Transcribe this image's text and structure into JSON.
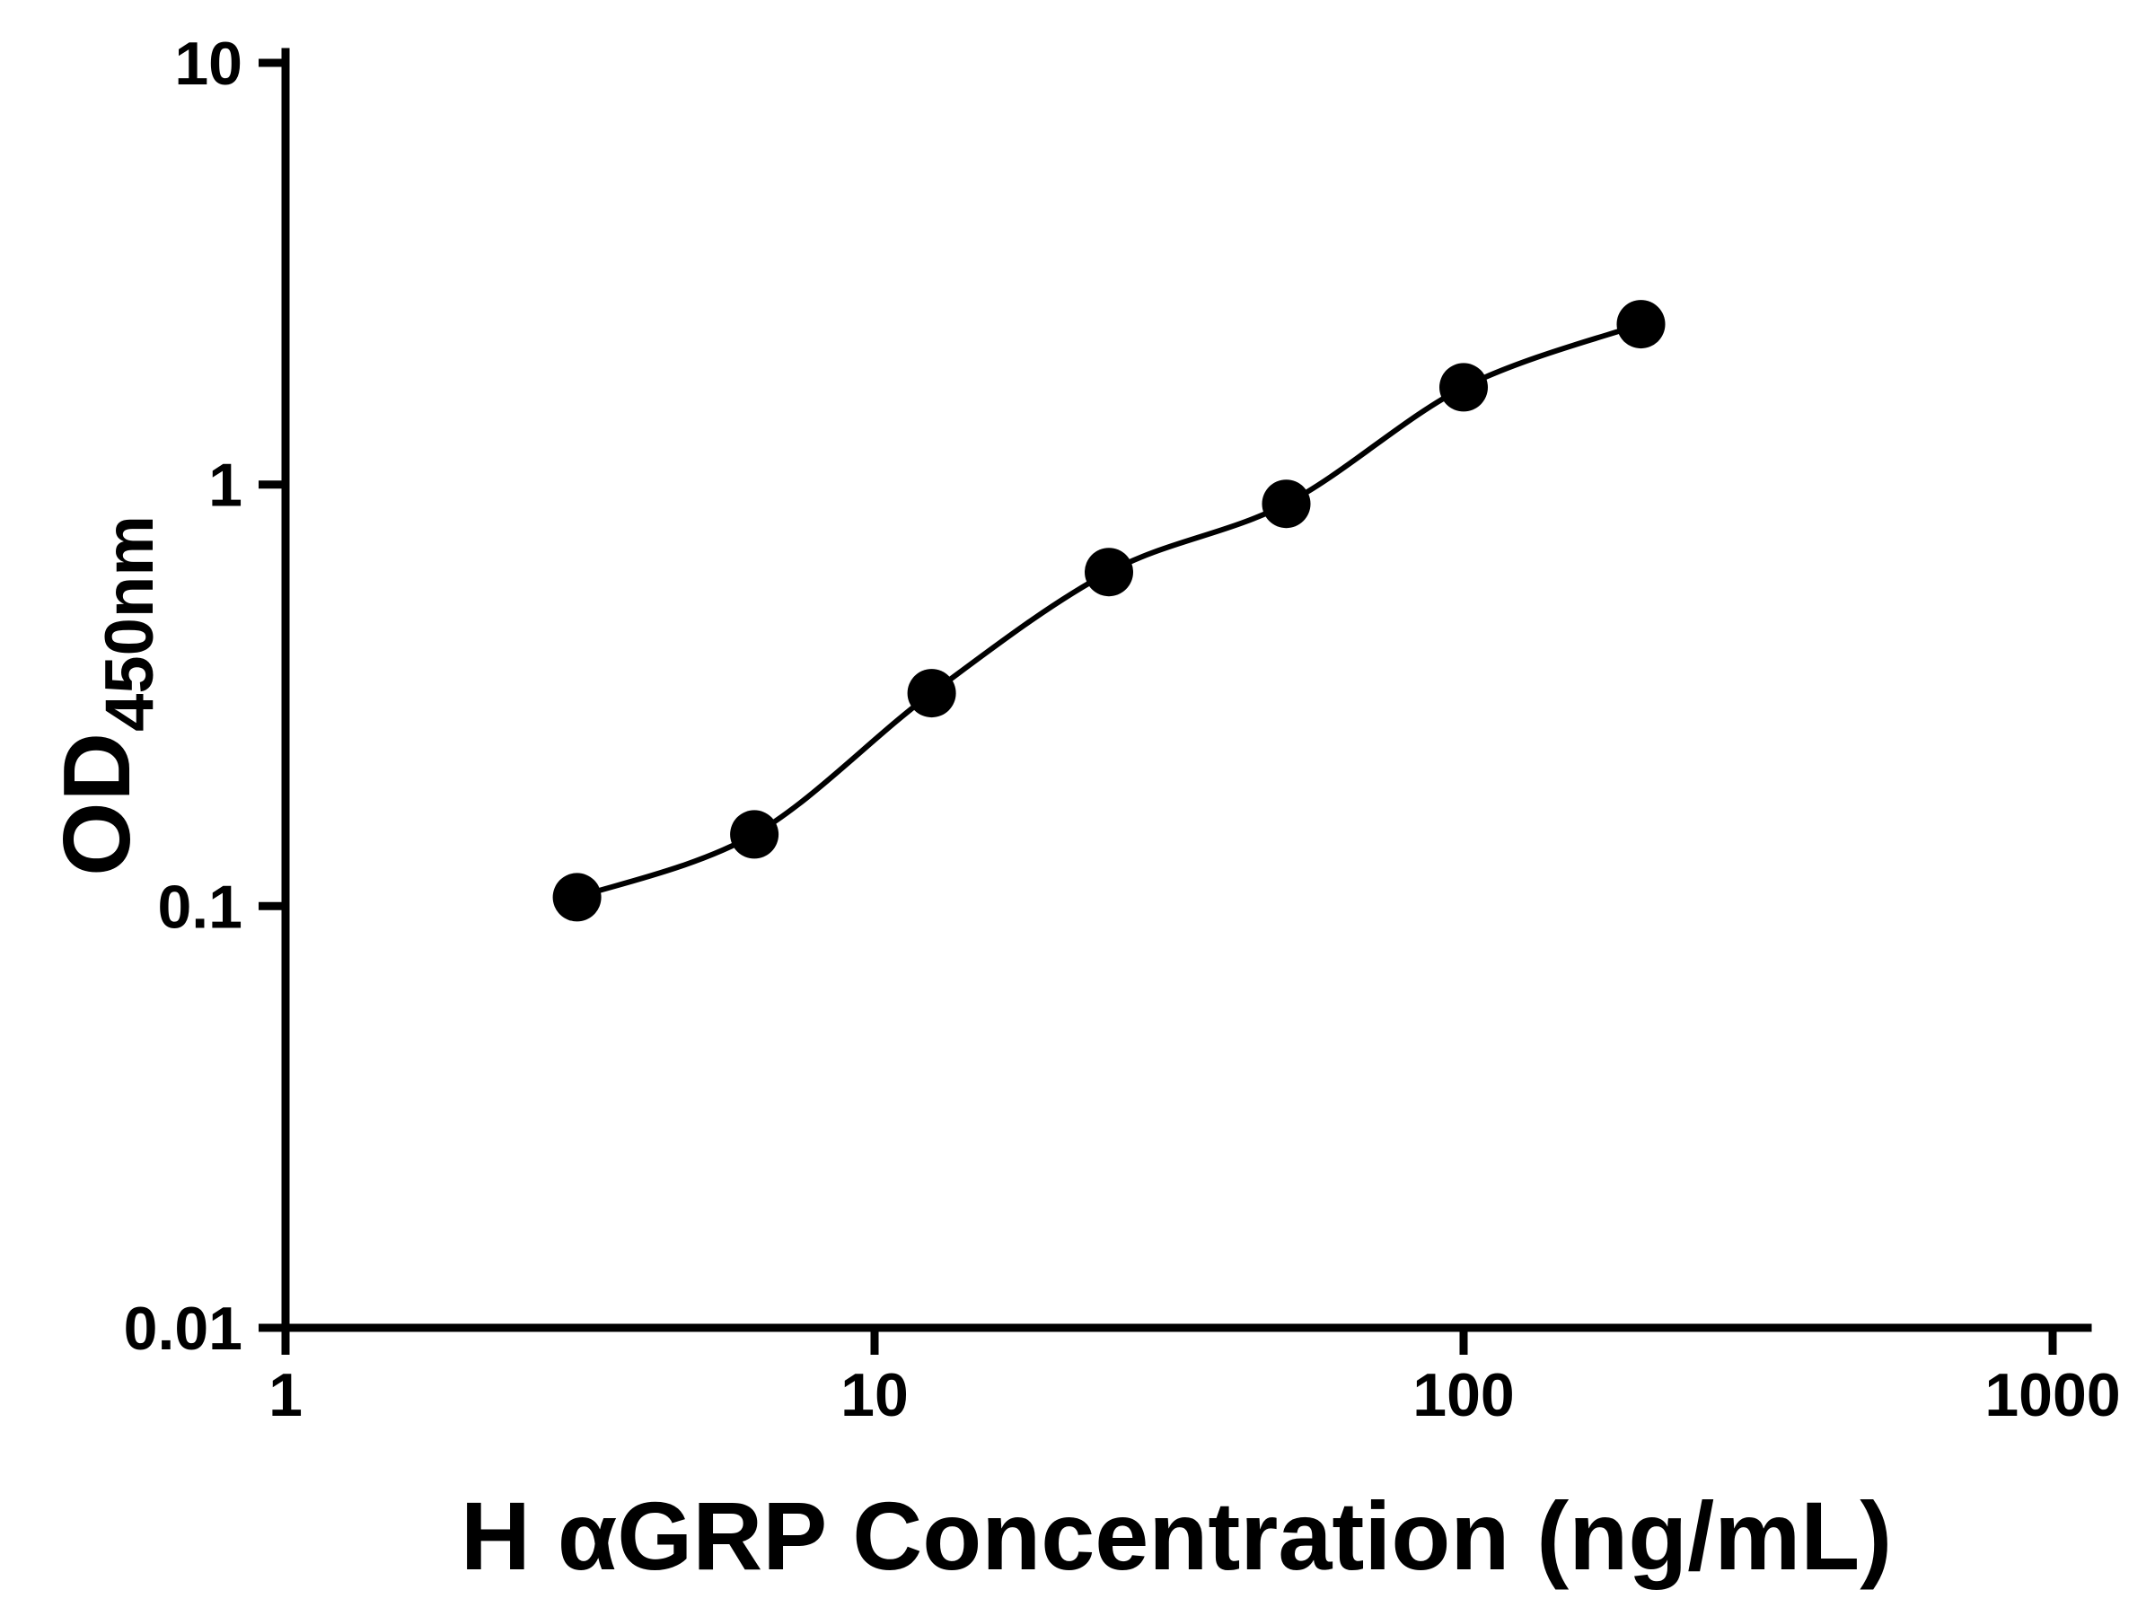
{
  "chart_data": {
    "type": "scatter",
    "title": "",
    "xlabel": "H αGRP Concentration (ng/mL)",
    "ylabel_main": "OD",
    "ylabel_sub": "450nm",
    "x_scale": "log",
    "y_scale": "log",
    "xlim": [
      1,
      1000
    ],
    "ylim": [
      0.01,
      10
    ],
    "x_ticks": [
      1,
      10,
      100,
      1000
    ],
    "x_tick_labels": [
      "1",
      "10",
      "100",
      "1000"
    ],
    "y_ticks": [
      0.01,
      0.1,
      1,
      10
    ],
    "y_tick_labels": [
      "0.01",
      "0.1",
      "1",
      "10"
    ],
    "x": [
      3.125,
      6.25,
      12.5,
      25,
      50,
      100,
      200
    ],
    "y": [
      0.105,
      0.148,
      0.32,
      0.62,
      0.9,
      1.7,
      2.4
    ],
    "marker": "filled-circle",
    "curve": "smooth-fit",
    "grid": false,
    "legend": false,
    "colors": {
      "axis": "#000000",
      "marker": "#000000",
      "line": "#000000",
      "background": "#ffffff"
    }
  }
}
